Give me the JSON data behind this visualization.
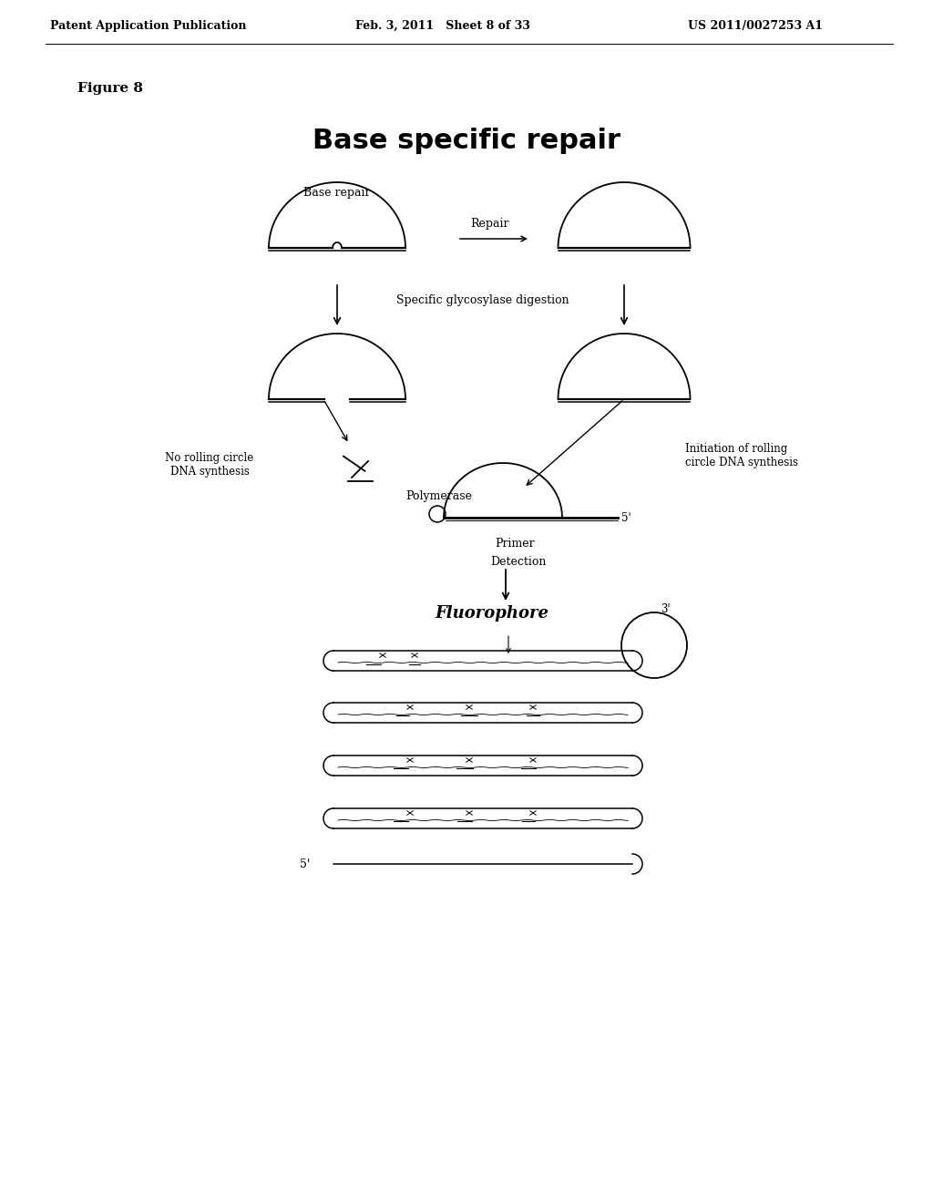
{
  "bg_color": "#ffffff",
  "header_left": "Patent Application Publication",
  "header_mid": "Feb. 3, 2011   Sheet 8 of 33",
  "header_right": "US 2011/0027253 A1",
  "figure_label": "Figure 8",
  "title": "Base specific repair",
  "subtitle": "Base repair",
  "repair_label": "Repair",
  "glycosylase_label": "Specific glycosylase digestion",
  "no_rolling_label": "No rolling circle\nDNA synthesis",
  "initiation_label": "Initiation of rolling\ncircle DNA synthesis",
  "polymerase_label": "Polymerase",
  "primer_label": "Primer",
  "detection_label": "Detection",
  "fluorophore_label": "Fluorophore",
  "prime3_label": "3'",
  "prime5_label": "5'",
  "prime5_bottom": "5'"
}
